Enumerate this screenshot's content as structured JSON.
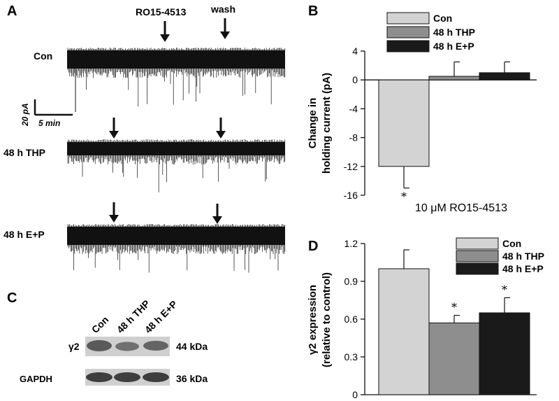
{
  "panels": {
    "A": {
      "letter": "A",
      "drug_label": "RO15-4513",
      "wash_label": "wash",
      "traces": [
        {
          "label": "Con"
        },
        {
          "label": "48 h THP"
        },
        {
          "label": "48 h E+P"
        }
      ],
      "scalebar": {
        "current": "20 pA",
        "time": "5 min"
      }
    },
    "B": {
      "letter": "B"
    },
    "C": {
      "letter": "C",
      "lanes": [
        "Con",
        "48 h THP",
        "48 h E+P"
      ],
      "bands": [
        {
          "name": "γ2",
          "size": "44 kDa"
        },
        {
          "name": "GAPDH",
          "size": "36 kDa"
        }
      ]
    },
    "D": {
      "letter": "D"
    }
  },
  "colors": {
    "con": "#d3d3d3",
    "thp": "#8e8e8e",
    "ep": "#1a1a1a",
    "trace": "#111111"
  },
  "chart_data": [
    {
      "panel": "B",
      "type": "bar",
      "categories": [
        "Con",
        "48 h THP",
        "48 h E+P"
      ],
      "values": [
        -12,
        0.5,
        1.0
      ],
      "errors": [
        3,
        2,
        1.5
      ],
      "significant": [
        true,
        false,
        false
      ],
      "ylabel": "Change in holding current (pA)",
      "xlabel": "10 μM RO15-4513",
      "ylim": [
        -16,
        4
      ],
      "yticks": [
        4,
        0,
        -4,
        -8,
        -12,
        -16
      ],
      "legend": [
        "Con",
        "48 h THP",
        "48 h E+P"
      ],
      "legend_position": "top"
    },
    {
      "panel": "D",
      "type": "bar",
      "categories": [
        "Con",
        "48 h THP",
        "48 h E+P"
      ],
      "values": [
        1.0,
        0.57,
        0.65
      ],
      "errors": [
        0.15,
        0.06,
        0.12
      ],
      "significant": [
        false,
        true,
        true
      ],
      "ylabel": "γ2 expression (relative to control)",
      "ylim": [
        0,
        1.2
      ],
      "yticks": [
        1.2,
        0.9,
        0.6,
        0.3,
        0
      ],
      "legend": [
        "Con",
        "48 h THP",
        "48 h E+P"
      ],
      "legend_position": "top-right"
    }
  ]
}
